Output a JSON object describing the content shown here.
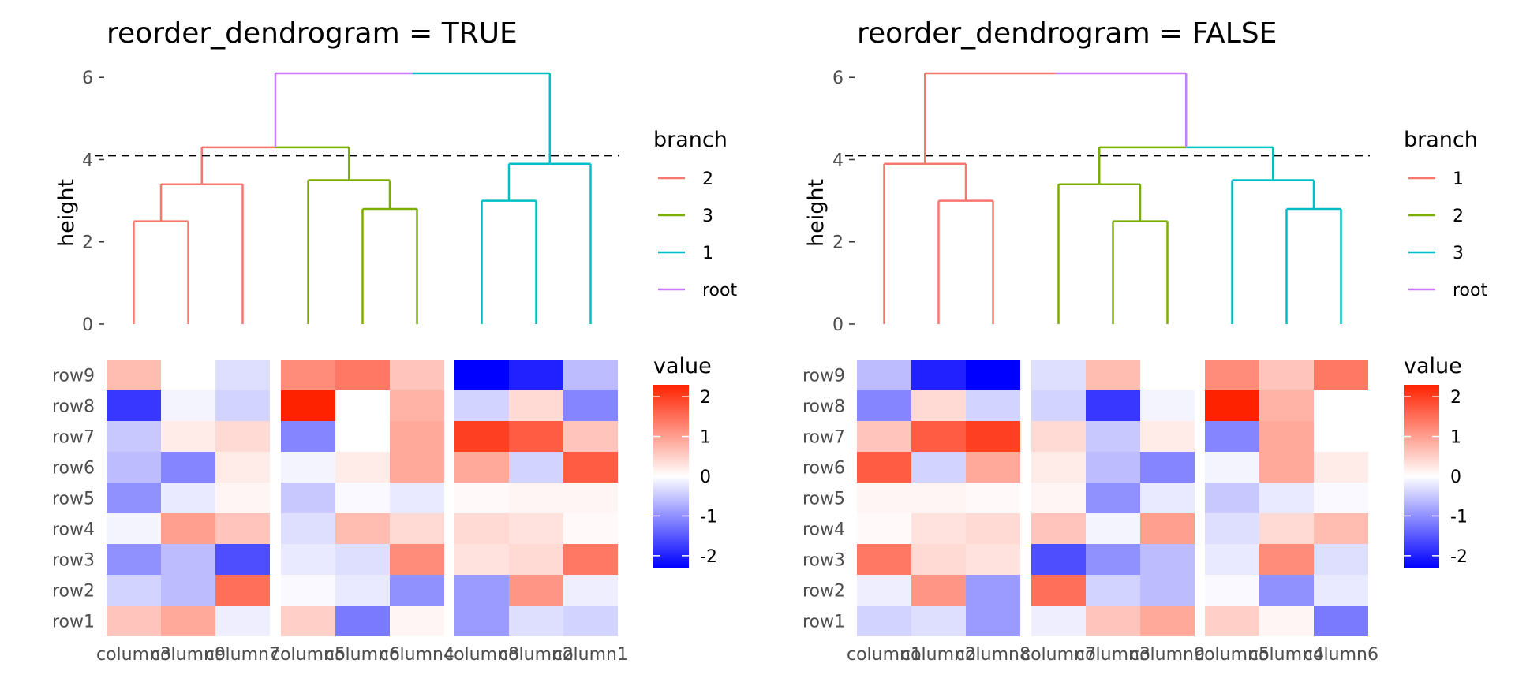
{
  "colors": {
    "branch_red": "#F8766D",
    "branch_green": "#7CAE00",
    "branch_cyan": "#00BFC4",
    "branch_purple": "#C77CFF",
    "scale_low": "#0000FF",
    "scale_mid": "#FFFFFF",
    "scale_high": "#FF2200",
    "cutoff_line": "#000000",
    "tick_text": "#4d4d4d"
  },
  "chart_data": [
    {
      "type": "dendrogram-heatmap",
      "title": "reorder_dendrogram = TRUE",
      "ylabel": "height",
      "ylim": [
        0,
        6.1
      ],
      "yticks": [
        0,
        2,
        4,
        6
      ],
      "cut_height": 4.1,
      "columns": [
        "column3",
        "column9",
        "column7",
        "column5",
        "column6",
        "column4",
        "column8",
        "column2",
        "column1"
      ],
      "column_groups": [
        3,
        3,
        3
      ],
      "leaf_colors": [
        "#F8766D",
        "#F8766D",
        "#F8766D",
        "#7CAE00",
        "#7CAE00",
        "#7CAE00",
        "#00BFC4",
        "#00BFC4",
        "#00BFC4"
      ],
      "merges": [
        {
          "left": 0,
          "right": 1,
          "height": 2.5,
          "color": "#F8766D"
        },
        {
          "left": 9,
          "right": 2,
          "height": 3.4,
          "color": "#F8766D"
        },
        {
          "left": 4,
          "right": 5,
          "height": 2.8,
          "color": "#7CAE00"
        },
        {
          "left": 3,
          "right": 11,
          "height": 3.5,
          "color": "#7CAE00"
        },
        {
          "left": 10,
          "right": 12,
          "height": 4.3,
          "colors": [
            "#F8766D",
            "#7CAE00"
          ]
        },
        {
          "left": 6,
          "right": 7,
          "height": 3.0,
          "color": "#00BFC4"
        },
        {
          "left": 14,
          "right": 8,
          "height": 3.9,
          "color": "#00BFC4"
        },
        {
          "left": 13,
          "right": 15,
          "height": 6.1,
          "colors": [
            "#C77CFF",
            "#00BFC4"
          ]
        }
      ],
      "branch_legend": {
        "title": "branch",
        "items": [
          {
            "label": "2",
            "color": "#F8766D"
          },
          {
            "label": "3",
            "color": "#7CAE00"
          },
          {
            "label": "1",
            "color": "#00BFC4"
          },
          {
            "label": "root",
            "color": "#C77CFF"
          }
        ]
      },
      "rows": [
        "row9",
        "row8",
        "row7",
        "row6",
        "row5",
        "row4",
        "row3",
        "row2",
        "row1"
      ],
      "heatmap_values": [
        [
          0.7,
          0.0,
          -0.3,
          1.2,
          1.4,
          0.6,
          -2.5,
          -2.0,
          -0.6
        ],
        [
          -1.8,
          -0.1,
          -0.4,
          2.3,
          0.0,
          0.8,
          -0.4,
          0.4,
          -1.1
        ],
        [
          -0.5,
          0.2,
          0.4,
          -1.1,
          0.0,
          0.9,
          2.0,
          1.7,
          0.6
        ],
        [
          -0.6,
          -1.1,
          0.2,
          -0.1,
          0.2,
          0.9,
          0.9,
          -0.4,
          1.7
        ],
        [
          -1.0,
          -0.2,
          0.1,
          -0.5,
          -0.05,
          -0.2,
          0.05,
          0.1,
          0.1
        ],
        [
          -0.1,
          1.0,
          0.6,
          -0.3,
          0.7,
          0.4,
          0.4,
          0.3,
          0.05
        ],
        [
          -1.0,
          -0.6,
          -1.6,
          -0.2,
          -0.3,
          1.2,
          0.3,
          0.4,
          1.4
        ],
        [
          -0.4,
          -0.6,
          1.5,
          -0.05,
          -0.2,
          -1.0,
          -0.9,
          1.1,
          -0.15
        ],
        [
          0.6,
          0.9,
          -0.15,
          0.5,
          -1.2,
          0.1,
          -0.9,
          -0.3,
          -0.4
        ]
      ],
      "value_legend": {
        "title": "value",
        "ticks": [
          2,
          1,
          0,
          -1,
          -2
        ],
        "range": [
          -2.3,
          2.3
        ]
      }
    },
    {
      "type": "dendrogram-heatmap",
      "title": "reorder_dendrogram = FALSE",
      "ylabel": "height",
      "ylim": [
        0,
        6.1
      ],
      "yticks": [
        0,
        2,
        4,
        6
      ],
      "cut_height": 4.1,
      "columns": [
        "column1",
        "column2",
        "column8",
        "column7",
        "column3",
        "column9",
        "column5",
        "column4",
        "column6"
      ],
      "column_groups": [
        3,
        3,
        3
      ],
      "leaf_colors": [
        "#F8766D",
        "#F8766D",
        "#F8766D",
        "#7CAE00",
        "#7CAE00",
        "#7CAE00",
        "#00BFC4",
        "#00BFC4",
        "#00BFC4"
      ],
      "merges": [
        {
          "left": 1,
          "right": 2,
          "height": 3.0,
          "color": "#F8766D"
        },
        {
          "left": 0,
          "right": 9,
          "height": 3.9,
          "color": "#F8766D"
        },
        {
          "left": 4,
          "right": 5,
          "height": 2.5,
          "color": "#7CAE00"
        },
        {
          "left": 3,
          "right": 11,
          "height": 3.4,
          "color": "#7CAE00"
        },
        {
          "left": 7,
          "right": 8,
          "height": 2.8,
          "color": "#00BFC4"
        },
        {
          "left": 6,
          "right": 13,
          "height": 3.5,
          "color": "#00BFC4"
        },
        {
          "left": 12,
          "right": 14,
          "height": 4.3,
          "colors": [
            "#7CAE00",
            "#00BFC4"
          ]
        },
        {
          "left": 10,
          "right": 15,
          "height": 6.1,
          "colors": [
            "#F8766D",
            "#C77CFF"
          ]
        }
      ],
      "branch_legend": {
        "title": "branch",
        "items": [
          {
            "label": "1",
            "color": "#F8766D"
          },
          {
            "label": "2",
            "color": "#7CAE00"
          },
          {
            "label": "3",
            "color": "#00BFC4"
          },
          {
            "label": "root",
            "color": "#C77CFF"
          }
        ]
      },
      "rows": [
        "row9",
        "row8",
        "row7",
        "row6",
        "row5",
        "row4",
        "row3",
        "row2",
        "row1"
      ],
      "heatmap_values": [
        [
          -0.6,
          -2.0,
          -2.5,
          -0.3,
          0.7,
          0.0,
          1.2,
          0.6,
          1.4
        ],
        [
          -1.1,
          0.4,
          -0.4,
          -0.4,
          -1.8,
          -0.1,
          2.3,
          0.8,
          0.0
        ],
        [
          0.6,
          1.7,
          2.0,
          0.4,
          -0.5,
          0.2,
          -1.1,
          0.9,
          0.0
        ],
        [
          1.7,
          -0.4,
          0.9,
          0.2,
          -0.6,
          -1.1,
          -0.1,
          0.9,
          0.2
        ],
        [
          0.1,
          0.1,
          0.05,
          0.1,
          -1.0,
          -0.2,
          -0.5,
          -0.2,
          -0.05
        ],
        [
          0.05,
          0.3,
          0.4,
          0.6,
          -0.1,
          1.0,
          -0.3,
          0.4,
          0.7
        ],
        [
          1.4,
          0.4,
          0.3,
          -1.6,
          -1.0,
          -0.6,
          -0.2,
          1.2,
          -0.3
        ],
        [
          -0.15,
          1.1,
          -0.9,
          1.5,
          -0.4,
          -0.6,
          -0.05,
          -1.0,
          -0.2
        ],
        [
          -0.4,
          -0.3,
          -0.9,
          -0.15,
          0.6,
          0.9,
          0.5,
          0.1,
          -1.2
        ]
      ],
      "value_legend": {
        "title": "value",
        "ticks": [
          2,
          1,
          0,
          -1,
          -2
        ],
        "range": [
          -2.3,
          2.3
        ]
      }
    }
  ]
}
